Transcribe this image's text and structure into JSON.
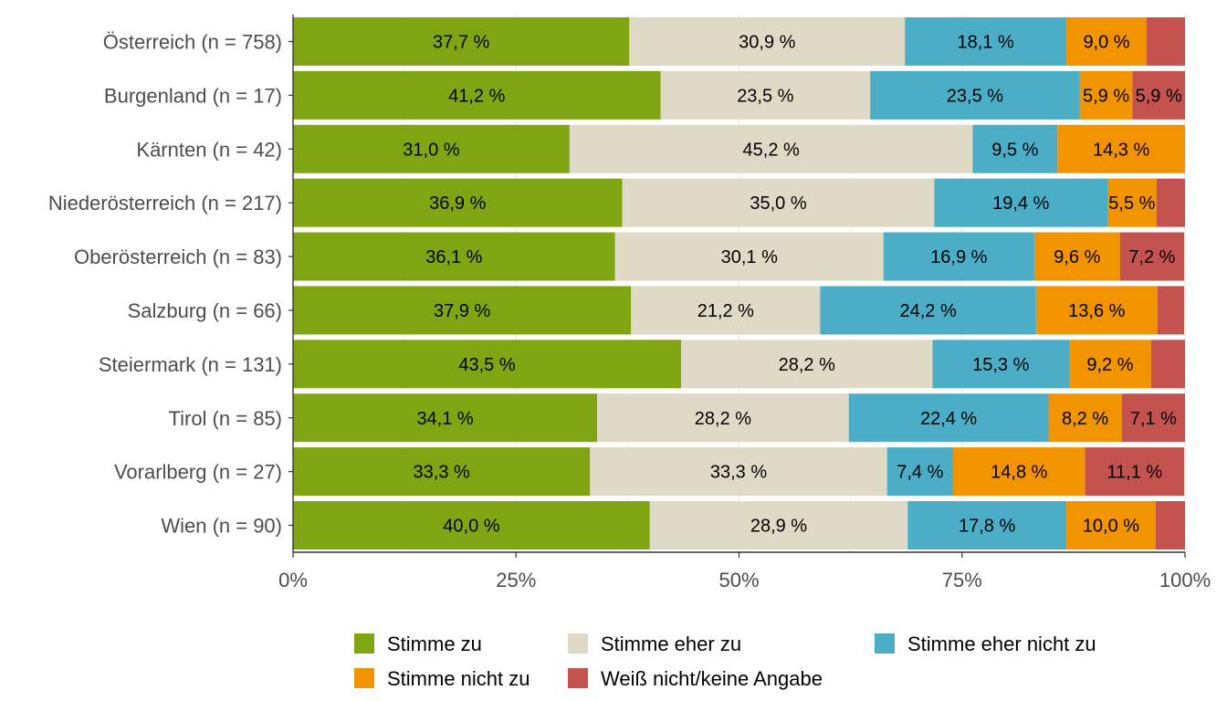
{
  "chart_data": {
    "type": "bar",
    "orientation": "horizontal",
    "stacked": true,
    "normalized": true,
    "categories": [
      "Österreich (n = 758)",
      "Burgenland (n = 17)",
      "Kärnten (n = 42)",
      "Niederösterreich (n = 217)",
      "Oberösterreich (n = 83)",
      "Salzburg (n = 66)",
      "Steiermark (n = 131)",
      "Tirol (n = 85)",
      "Vorarlberg (n = 27)",
      "Wien (n = 90)"
    ],
    "series": [
      {
        "name": "Stimme zu",
        "color": "#7fa512",
        "values": [
          37.7,
          41.2,
          31.0,
          36.9,
          36.1,
          37.9,
          43.5,
          34.1,
          33.3,
          40.0
        ],
        "labels": [
          "37,7 %",
          "41,2 %",
          "31,0 %",
          "36,9 %",
          "36,1 %",
          "37,9 %",
          "43,5 %",
          "34,1 %",
          "33,3 %",
          "40,0 %"
        ]
      },
      {
        "name": "Stimme eher zu",
        "color": "#dedac6",
        "values": [
          30.9,
          23.5,
          45.2,
          35.0,
          30.1,
          21.2,
          28.2,
          28.2,
          33.3,
          28.9
        ],
        "labels": [
          "30,9 %",
          "23,5 %",
          "45,2 %",
          "35,0 %",
          "30,1 %",
          "21,2 %",
          "28,2 %",
          "28,2 %",
          "33,3 %",
          "28,9 %"
        ]
      },
      {
        "name": "Stimme eher nicht zu",
        "color": "#4badc6",
        "values": [
          18.1,
          23.5,
          9.5,
          19.4,
          16.9,
          24.2,
          15.3,
          22.4,
          7.4,
          17.8
        ],
        "labels": [
          "18,1 %",
          "23,5 %",
          "9,5 %",
          "19,4 %",
          "16,9 %",
          "24,2 %",
          "15,3 %",
          "22,4 %",
          "7,4 %",
          "17,8 %"
        ]
      },
      {
        "name": "Stimme nicht zu",
        "color": "#f29400",
        "values": [
          9.0,
          5.9,
          14.3,
          5.5,
          9.6,
          13.6,
          9.2,
          8.2,
          14.8,
          10.0
        ],
        "labels": [
          "9,0 %",
          "5,9 %",
          "14,3 %",
          "5,5 %",
          "9,6 %",
          "13,6 %",
          "9,2 %",
          "8,2 %",
          "14,8 %",
          "10,0 %"
        ]
      },
      {
        "name": "Weiß nicht/keine Angabe",
        "color": "#c4524f",
        "values": [
          4.3,
          5.9,
          0.0,
          3.2,
          7.2,
          3.0,
          3.8,
          7.1,
          11.1,
          3.3
        ],
        "labels": [
          "",
          "5,9 %",
          "",
          "",
          "7,2 %",
          "",
          "",
          "7,1 %",
          "11,1 %",
          ""
        ]
      }
    ],
    "xlim": [
      0,
      100
    ],
    "x_ticks": [
      0,
      25,
      50,
      75,
      100
    ],
    "x_tick_labels": [
      "0%",
      "25%",
      "50%",
      "75%",
      "100%"
    ],
    "title": "",
    "xlabel": "",
    "ylabel": "",
    "grid": true,
    "legend_position": "bottom"
  }
}
